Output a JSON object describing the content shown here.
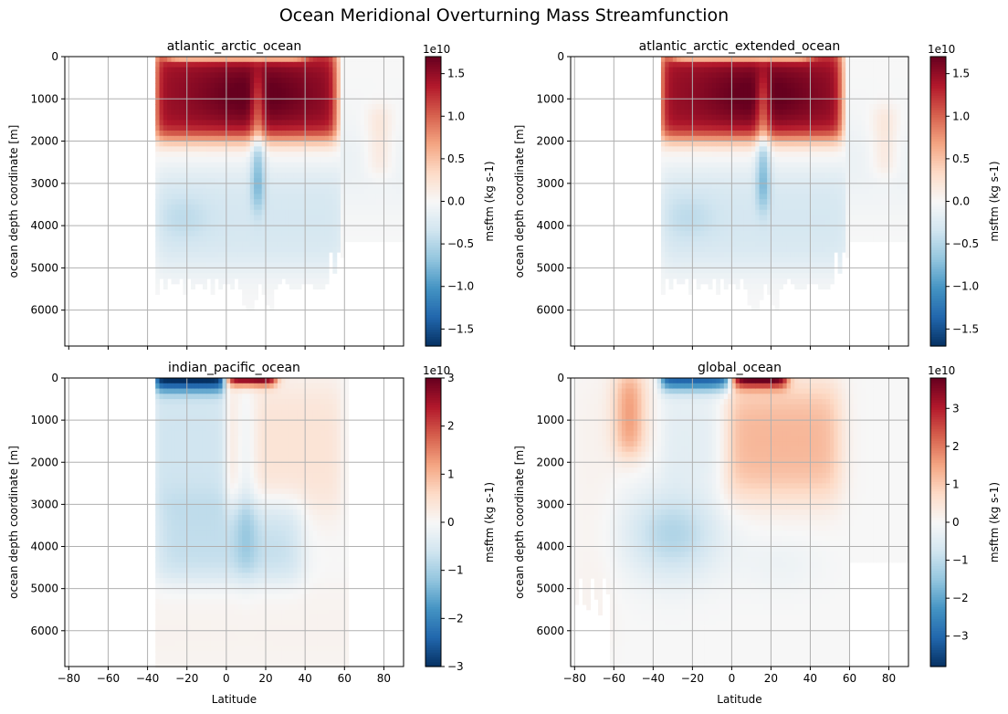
{
  "figure": {
    "title": "Ocean Meridional Overturning Mass Streamfunction"
  },
  "chart_data": [
    {
      "type": "heatmap",
      "title": "atlantic_arctic_ocean",
      "xlabel": "",
      "ylabel": "ocean depth coordinate [m]",
      "xlim": [
        -82,
        90
      ],
      "ylim": [
        6850,
        0
      ],
      "xticks": [
        -80,
        -60,
        -40,
        -20,
        0,
        20,
        40,
        60,
        80
      ],
      "show_xticklabels": false,
      "yticks": [
        0,
        1000,
        2000,
        3000,
        4000,
        5000,
        6000
      ],
      "grid": true,
      "colormap": "RdBu_r",
      "colorbar": {
        "label": "msftm (kg s-1)",
        "offset_text": "1e10",
        "vmin": -1.7,
        "vmax": 1.7,
        "ticks": [
          -1.5,
          -1.0,
          -0.5,
          0.0,
          0.5,
          1.0,
          1.5
        ],
        "ticklabels": [
          "−1.5",
          "−1.0",
          "−0.5",
          "0.0",
          "0.5",
          "1.0",
          "1.5"
        ]
      },
      "data_extent": {
        "lat": [
          -35,
          90
        ],
        "depth_max": 5700
      },
      "features": [
        {
          "lat": [
            -35,
            55
          ],
          "depth": [
            0,
            2000
          ],
          "value_e10": 1.3,
          "note": "upper positive cell"
        },
        {
          "lat": [
            -5,
            45
          ],
          "depth": [
            300,
            1500
          ],
          "value_e10": 1.65,
          "note": "core maximum"
        },
        {
          "lat": [
            -35,
            60
          ],
          "depth": [
            2600,
            5000
          ],
          "value_e10": -0.3,
          "note": "deep negative cell"
        }
      ]
    },
    {
      "type": "heatmap",
      "title": "atlantic_arctic_extended_ocean",
      "xlabel": "",
      "ylabel": "ocean depth coordinate [m]",
      "xlim": [
        -82,
        90
      ],
      "ylim": [
        6850,
        0
      ],
      "xticks": [
        -80,
        -60,
        -40,
        -20,
        0,
        20,
        40,
        60,
        80
      ],
      "show_xticklabels": false,
      "yticks": [
        0,
        1000,
        2000,
        3000,
        4000,
        5000,
        6000
      ],
      "grid": true,
      "colormap": "RdBu_r",
      "colorbar": {
        "label": "msftm (kg s-1)",
        "offset_text": "1e10",
        "vmin": -1.7,
        "vmax": 1.7,
        "ticks": [
          -1.5,
          -1.0,
          -0.5,
          0.0,
          0.5,
          1.0,
          1.5
        ],
        "ticklabels": [
          "−1.5",
          "−1.0",
          "−0.5",
          "0.0",
          "0.5",
          "1.0",
          "1.5"
        ]
      },
      "data_extent": {
        "lat": [
          -35,
          90
        ],
        "depth_max": 5700
      },
      "features": [
        {
          "lat": [
            -35,
            55
          ],
          "depth": [
            0,
            2000
          ],
          "value_e10": 1.3,
          "note": "upper positive cell"
        },
        {
          "lat": [
            -5,
            45
          ],
          "depth": [
            300,
            1500
          ],
          "value_e10": 1.65,
          "note": "core maximum"
        },
        {
          "lat": [
            -35,
            60
          ],
          "depth": [
            2600,
            5000
          ],
          "value_e10": -0.3,
          "note": "deep negative cell"
        }
      ]
    },
    {
      "type": "heatmap",
      "title": "indian_pacific_ocean",
      "xlabel": "Latitude",
      "ylabel": "ocean depth coordinate [m]",
      "xlim": [
        -82,
        90
      ],
      "ylim": [
        6850,
        0
      ],
      "xticks": [
        -80,
        -60,
        -40,
        -20,
        0,
        20,
        40,
        60,
        80
      ],
      "xticklabels": [
        "−80",
        "−60",
        "−40",
        "−20",
        "0",
        "20",
        "40",
        "60",
        "80"
      ],
      "show_xticklabels": true,
      "yticks": [
        0,
        1000,
        2000,
        3000,
        4000,
        5000,
        6000
      ],
      "grid": true,
      "colormap": "RdBu_r",
      "colorbar": {
        "label": "msftm (kg s-1)",
        "offset_text": "1e10",
        "vmin": -3.0,
        "vmax": 3.0,
        "ticks": [
          -3,
          -2,
          -1,
          0,
          1,
          2,
          3
        ],
        "ticklabels": [
          "−3",
          "−2",
          "−1",
          "0",
          "1",
          "2",
          "3"
        ]
      },
      "data_extent": {
        "lat": [
          -35,
          62
        ],
        "depth_max": 6850
      },
      "features": [
        {
          "lat": [
            -35,
            0
          ],
          "depth": [
            0,
            300
          ],
          "value_e10": -2.8,
          "note": "southern surface cell"
        },
        {
          "lat": [
            0,
            25
          ],
          "depth": [
            0,
            200
          ],
          "value_e10": 2.8,
          "note": "northern surface cell"
        },
        {
          "lat": [
            -35,
            0
          ],
          "depth": [
            300,
            3000
          ],
          "value_e10": -0.6,
          "note": "south intermediate"
        },
        {
          "lat": [
            0,
            60
          ],
          "depth": [
            300,
            3300
          ],
          "value_e10": 0.4,
          "note": "north intermediate"
        },
        {
          "lat": [
            -35,
            35
          ],
          "depth": [
            3000,
            4800
          ],
          "value_e10": -0.7,
          "note": "deep negative cell"
        }
      ]
    },
    {
      "type": "heatmap",
      "title": "global_ocean",
      "xlabel": "Latitude",
      "ylabel": "ocean depth coordinate [m]",
      "xlim": [
        -82,
        90
      ],
      "ylim": [
        6850,
        0
      ],
      "xticks": [
        -80,
        -60,
        -40,
        -20,
        0,
        20,
        40,
        60,
        80
      ],
      "xticklabels": [
        "−80",
        "−60",
        "−40",
        "−20",
        "0",
        "20",
        "40",
        "60",
        "80"
      ],
      "show_xticklabels": true,
      "yticks": [
        0,
        1000,
        2000,
        3000,
        4000,
        5000,
        6000
      ],
      "grid": true,
      "colormap": "RdBu_r",
      "colorbar": {
        "label": "msftm (kg s-1)",
        "offset_text": "1e10",
        "vmin": -3.8,
        "vmax": 3.8,
        "ticks": [
          -3,
          -2,
          -1,
          0,
          1,
          2,
          3
        ],
        "ticklabels": [
          "−3",
          "−2",
          "−1",
          "0",
          "1",
          "2",
          "3"
        ]
      },
      "data_extent": {
        "lat": [
          -80,
          90
        ],
        "depth_max": 6850
      },
      "features": [
        {
          "lat": [
            -62,
            -42
          ],
          "depth": [
            0,
            1800
          ],
          "value_e10": 1.6,
          "note": "southern positive cell"
        },
        {
          "lat": [
            -35,
            0
          ],
          "depth": [
            0,
            300
          ],
          "value_e10": -3.0,
          "note": "southern surface cell"
        },
        {
          "lat": [
            0,
            30
          ],
          "depth": [
            0,
            300
          ],
          "value_e10": 3.5,
          "note": "northern surface cell"
        },
        {
          "lat": [
            -5,
            55
          ],
          "depth": [
            300,
            2800
          ],
          "value_e10": 1.3,
          "note": "northern positive cell"
        },
        {
          "lat": [
            -50,
            10
          ],
          "depth": [
            2500,
            4800
          ],
          "value_e10": -1.1,
          "note": "deep negative cell"
        }
      ]
    }
  ]
}
